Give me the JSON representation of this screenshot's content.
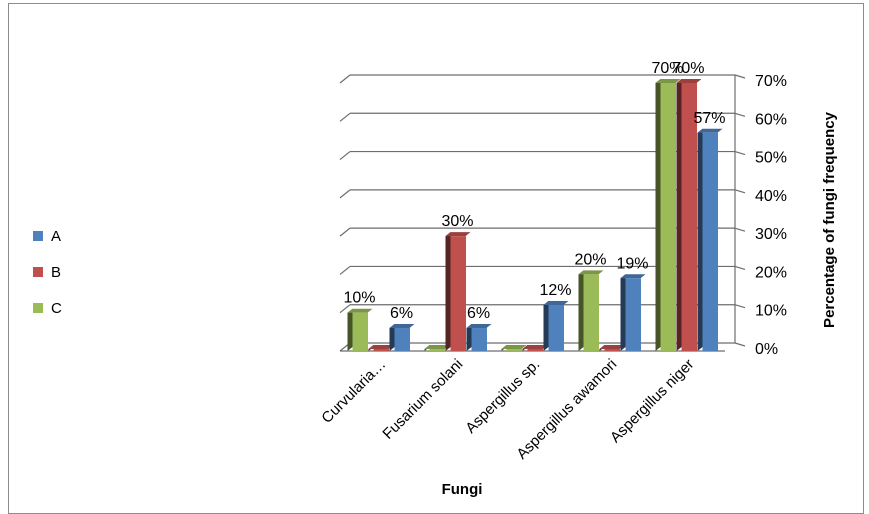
{
  "chart_data": {
    "type": "bar",
    "title": "",
    "xlabel": "Fungi",
    "ylabel": "Percentage of fungi frequency",
    "ylim": [
      0,
      70
    ],
    "yticks": [
      "0%",
      "10%",
      "20%",
      "30%",
      "40%",
      "50%",
      "60%",
      "70%"
    ],
    "categories": [
      "Curvularia…",
      "Fusarium solani",
      "Aspergillus sp.",
      "Aspergillus awamori",
      "Aspergillus niger"
    ],
    "series": [
      {
        "name": "C",
        "color": "#9bbb59",
        "values": [
          10,
          0,
          0,
          20,
          70
        ],
        "labels": [
          "10%",
          "",
          "",
          "20%",
          "70%"
        ]
      },
      {
        "name": "B",
        "color": "#c0504d",
        "values": [
          0,
          30,
          0,
          0,
          70
        ],
        "labels": [
          "",
          "30%",
          "",
          "",
          "70%"
        ]
      },
      {
        "name": "A",
        "color": "#4f81bd",
        "values": [
          6,
          6,
          12,
          19,
          57
        ],
        "labels": [
          "6%",
          "6%",
          "12%",
          "19%",
          "57%"
        ]
      }
    ],
    "legend": {
      "position": "left",
      "items": [
        {
          "name": "A",
          "color": "#4f81bd"
        },
        {
          "name": "B",
          "color": "#c0504d"
        },
        {
          "name": "C",
          "color": "#9bbb59"
        }
      ]
    },
    "grid": true
  }
}
